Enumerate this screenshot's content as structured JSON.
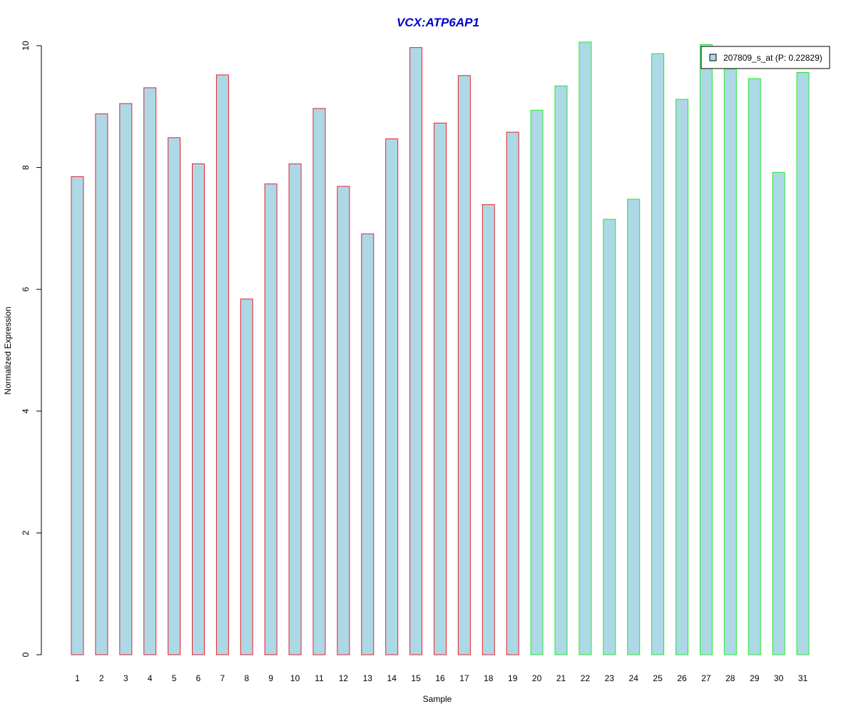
{
  "chart_data": {
    "type": "bar",
    "title": "VCX:ATP6AP1",
    "xlabel": "Sample",
    "ylabel": "Normalized Expression",
    "ylim": [
      0,
      10
    ],
    "yticks": [
      "0",
      "2",
      "4",
      "6",
      "8",
      "10"
    ],
    "categories": [
      "1",
      "2",
      "3",
      "4",
      "5",
      "6",
      "7",
      "8",
      "9",
      "10",
      "11",
      "12",
      "13",
      "14",
      "15",
      "16",
      "17",
      "18",
      "19",
      "20",
      "21",
      "22",
      "23",
      "24",
      "25",
      "26",
      "27",
      "28",
      "29",
      "30",
      "31"
    ],
    "series": [
      {
        "name": "207809_s_at (P: 0.22829)",
        "values": [
          7.85,
          8.88,
          9.05,
          9.31,
          8.49,
          8.06,
          9.52,
          5.84,
          7.73,
          8.06,
          8.97,
          7.69,
          6.91,
          8.47,
          9.97,
          8.73,
          9.51,
          7.39,
          8.58,
          8.94,
          9.34,
          10.06,
          7.15,
          7.48,
          9.87,
          9.12,
          10.02,
          9.62,
          9.46,
          7.92,
          9.56
        ]
      }
    ],
    "group_sizes": [
      19,
      12
    ],
    "legend": {
      "label": "207809_s_at (P: 0.22829)",
      "position": "top-right"
    },
    "grid": false
  },
  "colors": {
    "title": "#0000cc",
    "bar_fill": "#add8e6",
    "group1_border": "#e8222c",
    "group2_border": "#22e82c",
    "axis": "#000000"
  }
}
